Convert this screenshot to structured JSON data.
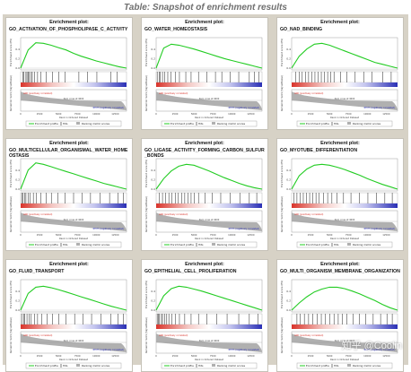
{
  "caption": "Table: Snapshot of enrichment results",
  "panel_title": "Enrichment plot:",
  "labels": {
    "y_enrichment": "Enrichment score (ES)",
    "y_ranked": "Ranked list metric (Signal2Noise)",
    "x_axis": "Rank in Ordered Dataset",
    "pos_label": "ANO (positively correlated)",
    "neg_label": "RTCH (negatively correlated)",
    "zero_cross": "Zero cross at 4600",
    "legend_es": "Enrichment profile",
    "legend_hits": "Hits",
    "legend_ranking": "Ranking metric scores"
  },
  "watermark": "知乎 @Coolin",
  "colors": {
    "es_line": "#22cc22",
    "hits": "#222222",
    "bar_red": "#d9342b",
    "bar_blue": "#2a2fb5",
    "metric_fill": "#b0b0b0",
    "background": "#d7d2c6"
  },
  "chart_data": [
    {
      "type": "line",
      "name": "GO_ACTIVATION_OF_PHOSPHOLIPASE_C_ACTIVITY",
      "ylabel": "Enrichment score (ES)",
      "xlabel": "Rank in Ordered Dataset",
      "x": [
        0,
        1000,
        2000,
        3000,
        4000,
        5000,
        6000,
        7000,
        8000,
        9000,
        10000,
        11000,
        12000,
        13000,
        14000
      ],
      "y": [
        0.0,
        0.38,
        0.53,
        0.52,
        0.48,
        0.43,
        0.38,
        0.31,
        0.25,
        0.2,
        0.15,
        0.11,
        0.07,
        0.03,
        0.0
      ],
      "hits": [
        0.02,
        0.03,
        0.05,
        0.06,
        0.07,
        0.08,
        0.1,
        0.11,
        0.13,
        0.16,
        0.19,
        0.24,
        0.3,
        0.36,
        0.42,
        0.55,
        0.63,
        0.72,
        0.85,
        0.91
      ]
    },
    {
      "type": "line",
      "name": "GO_WATER_HOMEOSTASIS",
      "ylabel": "Enrichment score (ES)",
      "xlabel": "Rank in Ordered Dataset",
      "x": [
        0,
        1000,
        2000,
        3000,
        4000,
        5000,
        6000,
        7000,
        8000,
        9000,
        10000,
        11000,
        12000,
        13000,
        14000
      ],
      "y": [
        0.0,
        0.42,
        0.5,
        0.48,
        0.44,
        0.4,
        0.35,
        0.3,
        0.25,
        0.2,
        0.16,
        0.12,
        0.08,
        0.04,
        0.0
      ],
      "hits": [
        0.01,
        0.03,
        0.04,
        0.06,
        0.08,
        0.11,
        0.14,
        0.18,
        0.22,
        0.28,
        0.33,
        0.4,
        0.48,
        0.56,
        0.62,
        0.7,
        0.78,
        0.88,
        0.93,
        0.97
      ]
    },
    {
      "type": "line",
      "name": "GO_NAD_BINDING",
      "ylabel": "Enrichment score (ES)",
      "xlabel": "Rank in Ordered Dataset",
      "x": [
        0,
        1000,
        2000,
        3000,
        4000,
        5000,
        6000,
        7000,
        8000,
        9000,
        10000,
        11000,
        12000,
        13000,
        14000
      ],
      "y": [
        0.0,
        0.25,
        0.4,
        0.5,
        0.52,
        0.48,
        0.42,
        0.36,
        0.3,
        0.24,
        0.18,
        0.12,
        0.08,
        0.04,
        0.0
      ],
      "hits": [
        0.04,
        0.07,
        0.1,
        0.13,
        0.16,
        0.19,
        0.22,
        0.25,
        0.28,
        0.31,
        0.34,
        0.37,
        0.4,
        0.46,
        0.52,
        0.6,
        0.68,
        0.76,
        0.86,
        0.94
      ]
    },
    {
      "type": "line",
      "name": "GO_MULTICELLULAR_ORGANISMAL_WATER_HOMEOSTASIS",
      "ylabel": "Enrichment score (ES)",
      "xlabel": "Rank in Ordered Dataset",
      "x": [
        0,
        1000,
        2000,
        3000,
        4000,
        5000,
        6000,
        7000,
        8000,
        9000,
        10000,
        11000,
        12000,
        13000,
        14000
      ],
      "y": [
        0.0,
        0.4,
        0.55,
        0.52,
        0.47,
        0.42,
        0.37,
        0.32,
        0.27,
        0.22,
        0.17,
        0.12,
        0.08,
        0.04,
        0.0
      ],
      "hits": [
        0.01,
        0.02,
        0.04,
        0.05,
        0.07,
        0.09,
        0.12,
        0.15,
        0.19,
        0.24,
        0.29,
        0.35,
        0.42,
        0.5,
        0.58,
        0.66,
        0.75,
        0.84,
        0.92,
        0.97
      ]
    },
    {
      "type": "line",
      "name": "GO_LIGASE_ACTIVITY_FORMING_CARBON_SULFUR_BONDS",
      "ylabel": "Enrichment score (ES)",
      "xlabel": "Rank in Ordered Dataset",
      "x": [
        0,
        1000,
        2000,
        3000,
        4000,
        5000,
        6000,
        7000,
        8000,
        9000,
        10000,
        11000,
        12000,
        13000,
        14000
      ],
      "y": [
        0.0,
        0.22,
        0.38,
        0.48,
        0.52,
        0.5,
        0.44,
        0.38,
        0.31,
        0.24,
        0.18,
        0.12,
        0.07,
        0.03,
        0.0
      ],
      "hits": [
        0.03,
        0.06,
        0.09,
        0.12,
        0.15,
        0.18,
        0.21,
        0.24,
        0.27,
        0.3,
        0.33,
        0.36,
        0.4,
        0.46,
        0.53,
        0.61,
        0.7,
        0.79,
        0.88,
        0.95
      ]
    },
    {
      "type": "line",
      "name": "GO_MYOTUBE_DIFFERENTIATION",
      "ylabel": "Enrichment score (ES)",
      "xlabel": "Rank in Ordered Dataset",
      "x": [
        0,
        1000,
        2000,
        3000,
        4000,
        5000,
        6000,
        7000,
        8000,
        9000,
        10000,
        11000,
        12000,
        13000,
        14000
      ],
      "y": [
        0.0,
        0.28,
        0.42,
        0.5,
        0.52,
        0.5,
        0.46,
        0.41,
        0.35,
        0.29,
        0.22,
        0.16,
        0.1,
        0.05,
        0.0
      ],
      "hits": [
        0.02,
        0.05,
        0.08,
        0.11,
        0.14,
        0.17,
        0.2,
        0.23,
        0.26,
        0.3,
        0.34,
        0.38,
        0.43,
        0.49,
        0.56,
        0.64,
        0.72,
        0.8,
        0.88,
        0.95
      ]
    },
    {
      "type": "line",
      "name": "GO_FLUID_TRANSPORT",
      "ylabel": "Enrichment score (ES)",
      "xlabel": "Rank in Ordered Dataset",
      "x": [
        0,
        1000,
        2000,
        3000,
        4000,
        5000,
        6000,
        7000,
        8000,
        9000,
        10000,
        11000,
        12000,
        13000,
        14000
      ],
      "y": [
        0.0,
        0.35,
        0.48,
        0.5,
        0.47,
        0.43,
        0.38,
        0.33,
        0.28,
        0.23,
        0.18,
        0.13,
        0.08,
        0.04,
        0.0
      ],
      "hits": [
        0.01,
        0.03,
        0.04,
        0.06,
        0.08,
        0.1,
        0.13,
        0.16,
        0.2,
        0.25,
        0.3,
        0.36,
        0.43,
        0.51,
        0.59,
        0.67,
        0.76,
        0.85,
        0.92,
        0.97
      ]
    },
    {
      "type": "line",
      "name": "GO_EPITHELIAL_CELL_PROLIFERATION",
      "ylabel": "Enrichment score (ES)",
      "xlabel": "Rank in Ordered Dataset",
      "x": [
        0,
        1000,
        2000,
        3000,
        4000,
        5000,
        6000,
        7000,
        8000,
        9000,
        10000,
        11000,
        12000,
        13000,
        14000
      ],
      "y": [
        0.0,
        0.3,
        0.45,
        0.5,
        0.48,
        0.44,
        0.4,
        0.35,
        0.3,
        0.25,
        0.2,
        0.15,
        0.1,
        0.05,
        0.0
      ],
      "hits": [
        0.01,
        0.02,
        0.03,
        0.05,
        0.06,
        0.08,
        0.1,
        0.12,
        0.15,
        0.18,
        0.22,
        0.27,
        0.33,
        0.4,
        0.48,
        0.57,
        0.67,
        0.78,
        0.88,
        0.96
      ]
    },
    {
      "type": "line",
      "name": "GO_MULTI_ORGANISM_MEMBRANE_ORGANIZATION",
      "ylabel": "Enrichment score (ES)",
      "xlabel": "Rank in Ordered Dataset",
      "x": [
        0,
        1000,
        2000,
        3000,
        4000,
        5000,
        6000,
        7000,
        8000,
        9000,
        10000,
        11000,
        12000,
        13000,
        14000
      ],
      "y": [
        0.0,
        0.15,
        0.28,
        0.38,
        0.44,
        0.48,
        0.48,
        0.45,
        0.4,
        0.34,
        0.27,
        0.2,
        0.12,
        0.05,
        0.0
      ],
      "hits": [
        0.05,
        0.08,
        0.12,
        0.16,
        0.2,
        0.24,
        0.28,
        0.32,
        0.36,
        0.4,
        0.44,
        0.48,
        0.52,
        0.58,
        0.64,
        0.7,
        0.77,
        0.84,
        0.9,
        0.95
      ]
    }
  ]
}
